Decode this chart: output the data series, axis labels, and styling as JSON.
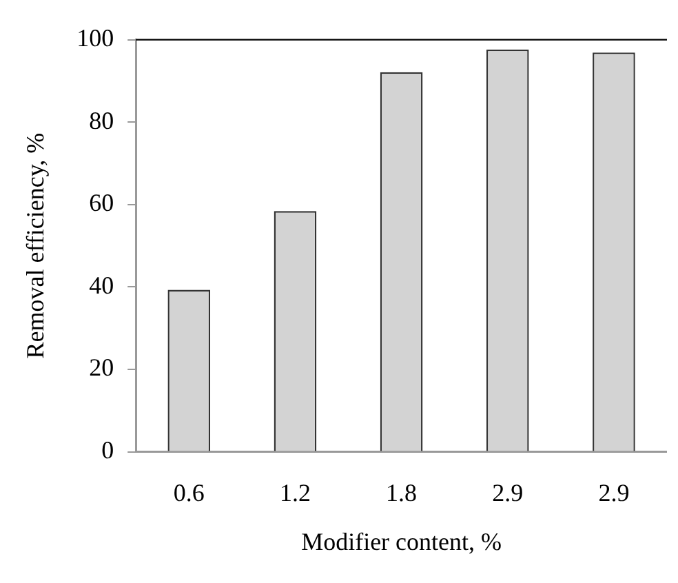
{
  "chart_data": {
    "type": "bar",
    "xlabel": "Modifier content, %",
    "ylabel": "Removal efficiency, %",
    "categories": [
      "0.6",
      "1.2",
      "1.8",
      "2.9",
      "2.9"
    ],
    "values": [
      39.3,
      58.4,
      92.1,
      97.6,
      96.9
    ],
    "color": "#d3d3d3",
    "ylim": [
      0,
      100
    ],
    "yticks": [
      0,
      20,
      40,
      60,
      80,
      100
    ],
    "grid": false,
    "legend": false
  }
}
